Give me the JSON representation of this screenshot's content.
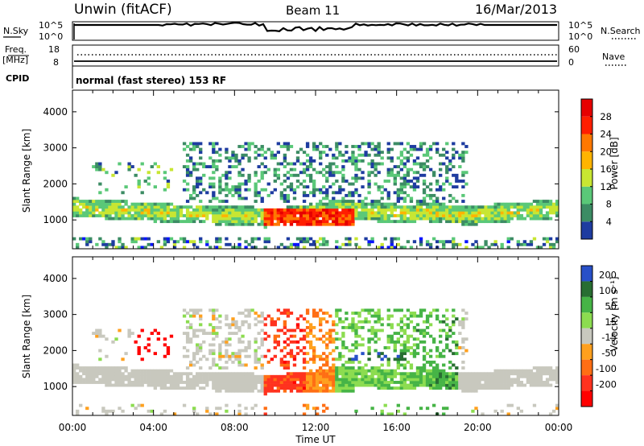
{
  "header": {
    "station": "Unwin (fitACF)",
    "beam": "Beam 11",
    "date": "16/Mar/2013"
  },
  "noise_panel": {
    "left_label": "N.Sky",
    "right_label": "N.Search",
    "left_ticks": [
      "10^5",
      "10^0"
    ],
    "right_ticks": [
      "10^5",
      "10^0"
    ]
  },
  "freq_panel": {
    "left_label_1": "Freq.",
    "left_label_2": "[MHz]",
    "right_label": "Nave",
    "left_ticks": [
      "18",
      "8"
    ],
    "right_ticks": [
      "60",
      "0"
    ]
  },
  "cpid_panel": {
    "label": "CPID",
    "text": "normal (fast stereo) 153 RF"
  },
  "colors": {
    "power": [
      "#0a14ff",
      "#1e3ca0",
      "#3c8c64",
      "#5ac878",
      "#c8e632",
      "#ffb400",
      "#ff7800",
      "#ff1e00",
      "#e60000"
    ],
    "velocity": [
      "#2850c8",
      "#286e32",
      "#46b446",
      "#8cdc50",
      "#c8c8be",
      "#ffa01e",
      "#ff6e14",
      "#ff321e",
      "#ff0000"
    ]
  },
  "chart_data": [
    {
      "type": "heatmap",
      "quantity": "Power",
      "ylabel": "Slant Range [km]",
      "yticks": [
        1000,
        2000,
        3000,
        4000
      ],
      "ylim": [
        200,
        4600
      ],
      "xlim": [
        0,
        24
      ],
      "colorbar": {
        "label": "Power [dB]",
        "ticks": [
          "4",
          "8",
          "12",
          "16",
          "20",
          "24",
          "28"
        ],
        "range": [
          0,
          32
        ]
      }
    },
    {
      "type": "heatmap",
      "quantity": "Velocity",
      "ylabel": "Slant Range [km]",
      "yticks": [
        1000,
        2000,
        3000,
        4000
      ],
      "ylim": [
        200,
        4600
      ],
      "xlim": [
        0,
        24
      ],
      "xticks": [
        "00:00",
        "04:00",
        "08:00",
        "12:00",
        "16:00",
        "20:00",
        "00:00"
      ],
      "xlabel": "Time UT",
      "colorbar": {
        "label": "Velocity [m s⁻¹]",
        "ticks": [
          "200",
          "100",
          "50",
          "15",
          "-15",
          "-50",
          "-100",
          "-200"
        ]
      }
    }
  ]
}
